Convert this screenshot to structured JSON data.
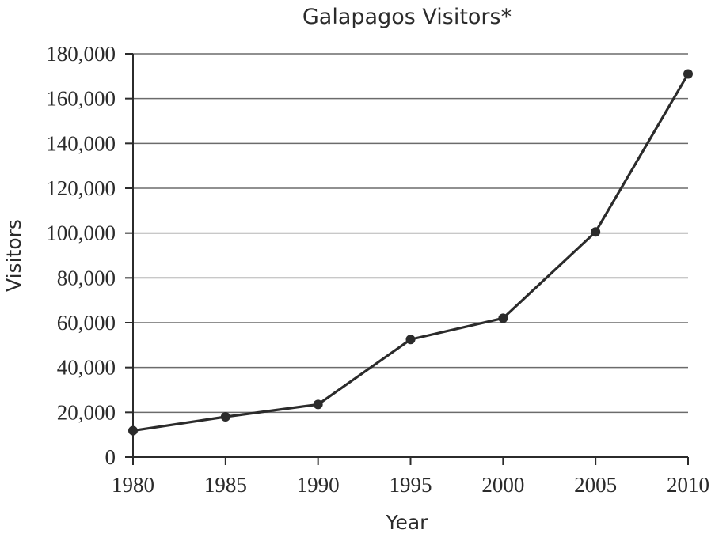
{
  "chart_data": {
    "type": "line",
    "title": "Galapagos Visitors*",
    "xlabel": "Year",
    "ylabel": "Visitors",
    "x": [
      1980,
      1985,
      1990,
      1995,
      2000,
      2005,
      2010
    ],
    "series": [
      {
        "values": [
          11800,
          18000,
          23500,
          52500,
          62000,
          100500,
          171000
        ]
      }
    ],
    "xlim": [
      1980,
      2010
    ],
    "ylim": [
      0,
      180000
    ],
    "xticks": [
      1980,
      1985,
      1990,
      1995,
      2000,
      2005,
      2010
    ],
    "yticks": [
      0,
      20000,
      40000,
      60000,
      80000,
      100000,
      120000,
      140000,
      160000,
      180000
    ],
    "ytick_labels": [
      "0",
      "20,000",
      "40,000",
      "60,000",
      "80,000",
      "100,000",
      "120,000",
      "140,000",
      "160,000",
      "180,000"
    ],
    "xtick_labels": [
      "1980",
      "1985",
      "1990",
      "1995",
      "2000",
      "2005",
      "2010"
    ],
    "grid": true,
    "colors": {
      "line": "#2b2b2b",
      "grid": "#6b6b6b"
    }
  }
}
